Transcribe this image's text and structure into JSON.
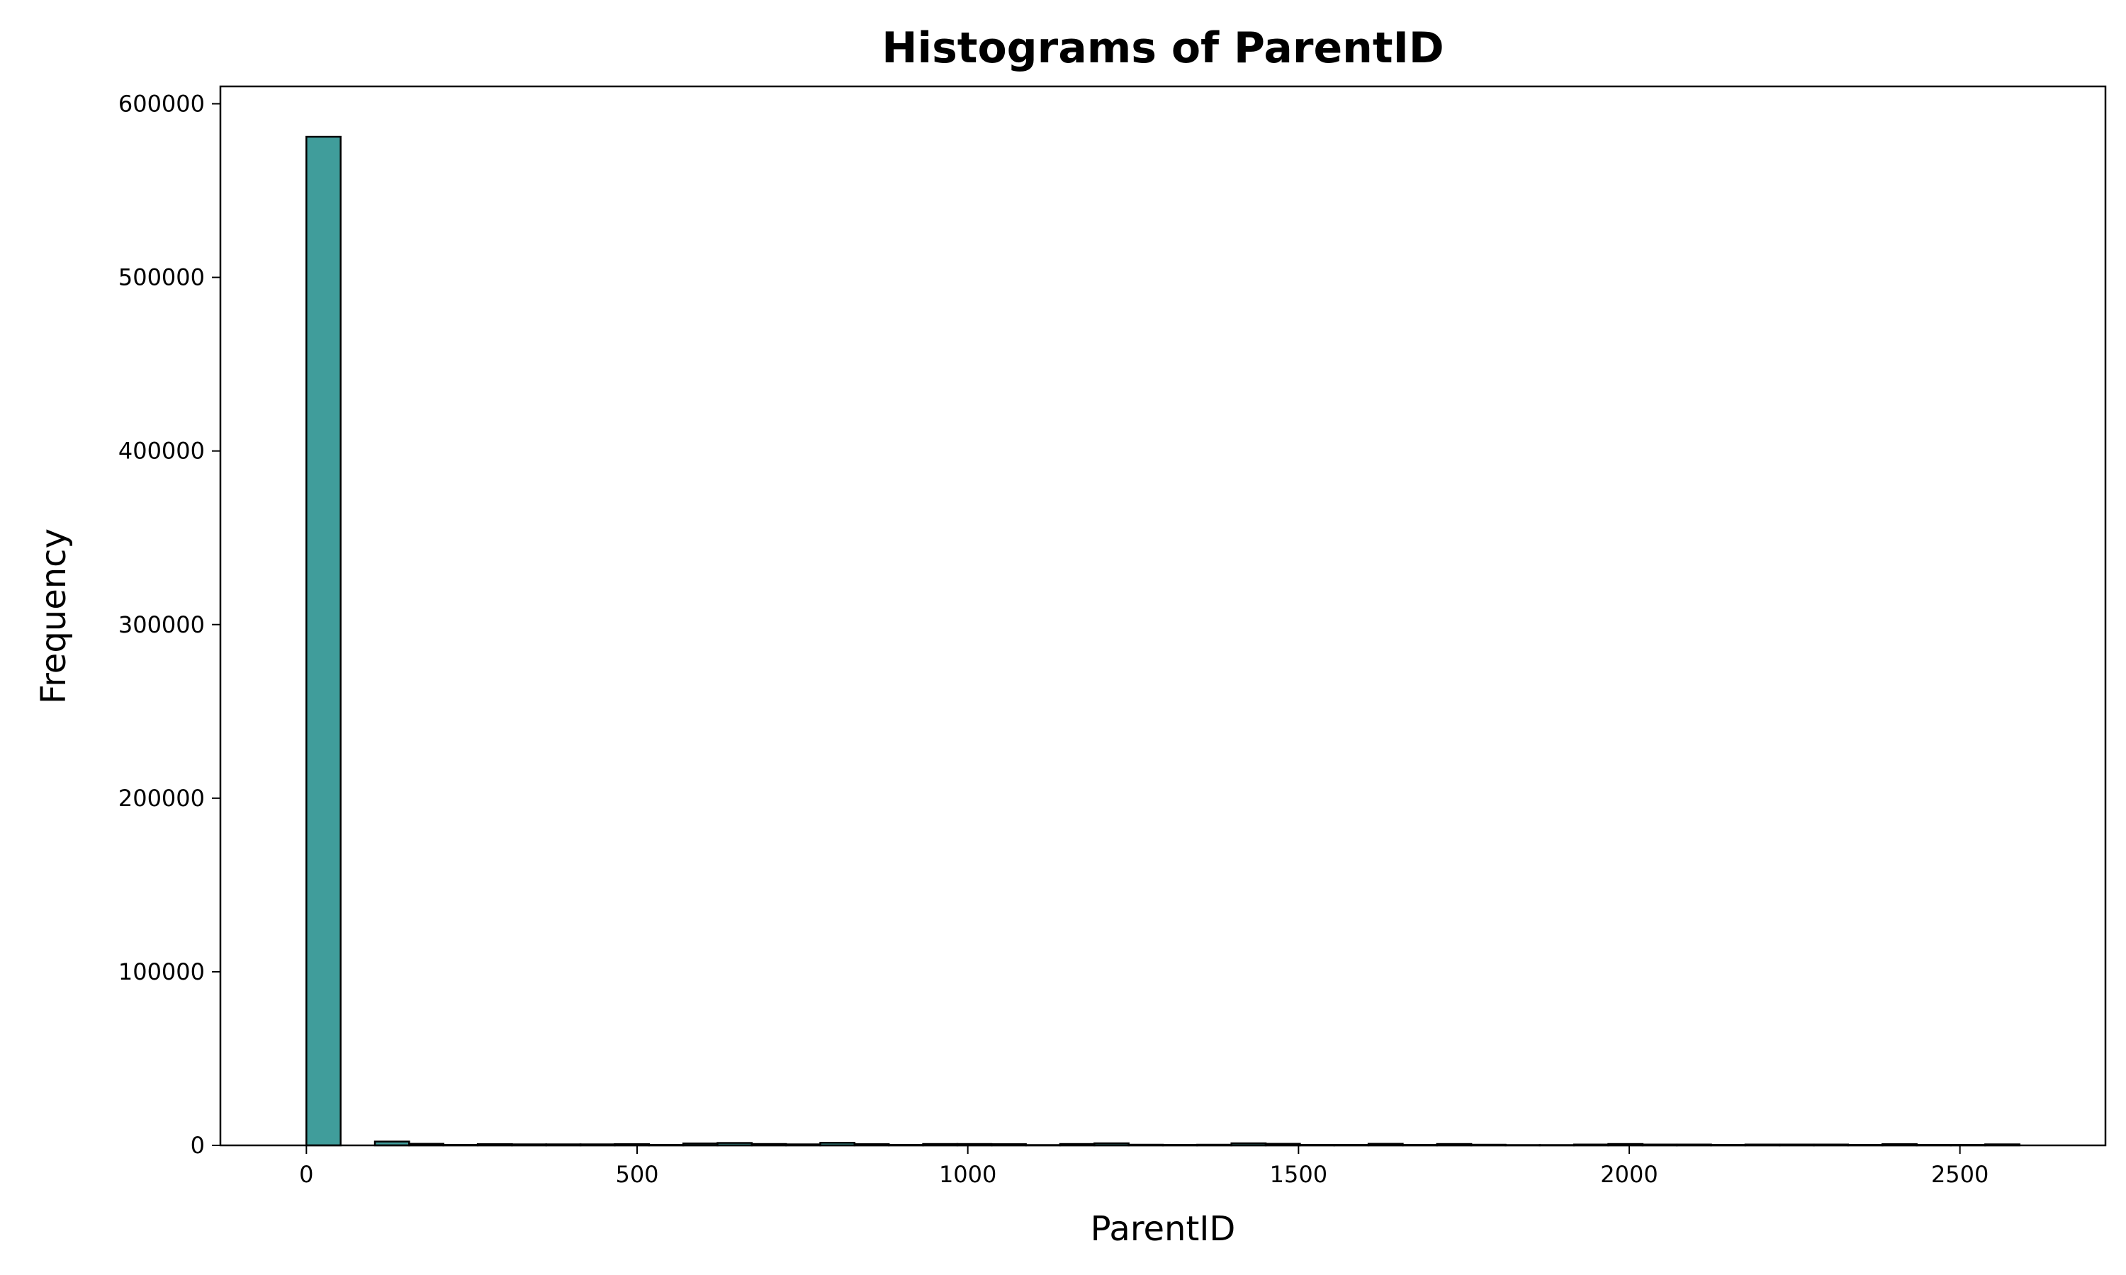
{
  "chart_data": {
    "type": "bar",
    "title": "Histograms of ParentID",
    "xlabel": "ParentID",
    "ylabel": "Frequency",
    "xlim": [
      -130,
      2720
    ],
    "ylim": [
      0,
      610000
    ],
    "x_ticks": [
      0,
      500,
      1000,
      1500,
      2000,
      2500
    ],
    "y_ticks": [
      0,
      100000,
      200000,
      300000,
      400000,
      500000,
      600000
    ],
    "grid": false,
    "bin_edges": [
      0,
      51.8,
      103.6,
      155.4,
      207.2,
      259,
      310.8,
      362.6,
      414.4,
      466.2,
      518,
      569.8,
      621.6,
      673.4,
      725.2,
      777,
      828.8,
      880.6,
      932.4,
      984.2,
      1036,
      1087.8,
      1139.6,
      1191.4,
      1243.2,
      1295,
      1346.8,
      1398.6,
      1450.4,
      1502.2,
      1554,
      1605.8,
      1657.6,
      1709.4,
      1761.2,
      1813,
      1864.8,
      1916.6,
      1968.4,
      2020.2,
      2072,
      2123.8,
      2175.6,
      2227.4,
      2279.2,
      2331,
      2382.8,
      2434.6,
      2486.4,
      2538.2,
      2590
    ],
    "values": [
      581000,
      0,
      2200,
      900,
      300,
      700,
      600,
      600,
      600,
      700,
      300,
      1100,
      1400,
      800,
      600,
      1500,
      700,
      300,
      800,
      800,
      700,
      200,
      800,
      1200,
      400,
      300,
      400,
      1200,
      900,
      300,
      300,
      900,
      300,
      800,
      400,
      200,
      200,
      500,
      800,
      500,
      500,
      300,
      500,
      500,
      500,
      300,
      700,
      300,
      300,
      600
    ],
    "bar_color": "#409d9b",
    "edge_color": "#000000"
  }
}
